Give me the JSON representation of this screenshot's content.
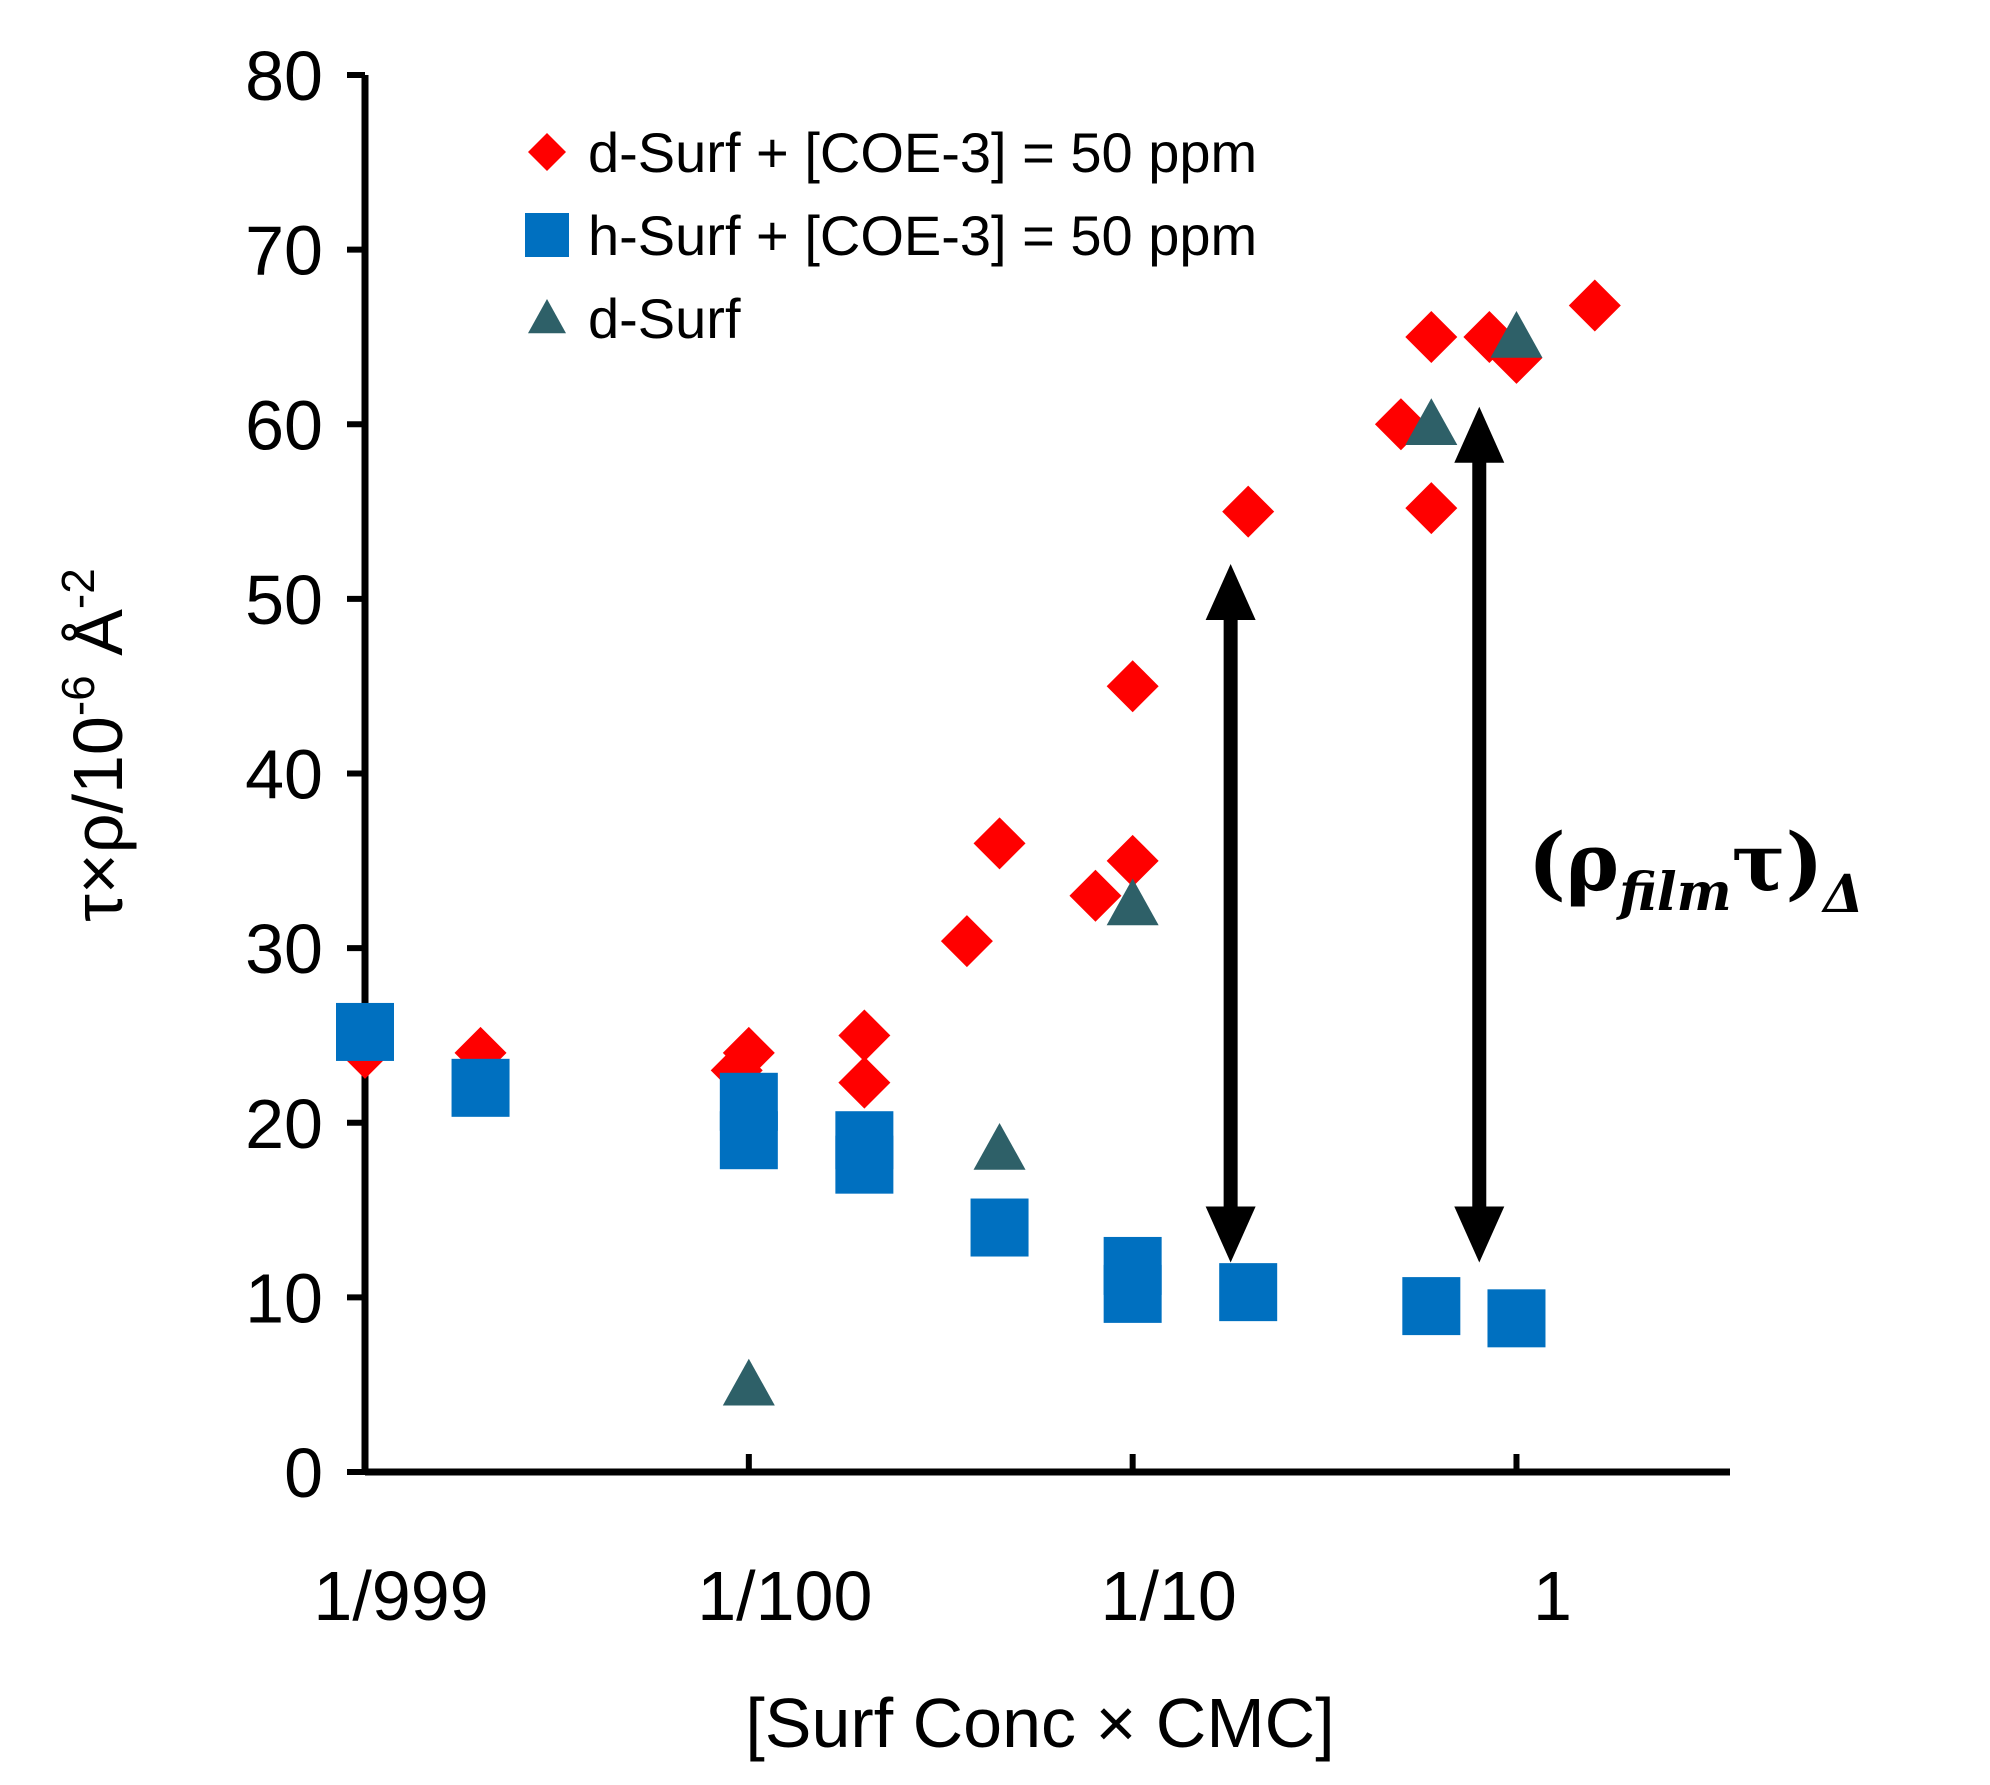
{
  "chart_data": {
    "type": "scatter",
    "title": "",
    "xlabel": "[Surf Conc × CMC]",
    "ylabel": "τ×ρ/10⁻⁶ Å⁻²",
    "ylabel_parts": {
      "main": "τ×ρ/10",
      "exp1": "-6",
      "unit": " Å",
      "exp2": "-2"
    },
    "x_scale": "log10",
    "xlim": [
      0.001,
      3.6
    ],
    "ylim": [
      0,
      80
    ],
    "yticks": [
      0,
      10,
      20,
      30,
      40,
      50,
      60,
      70,
      80
    ],
    "xtick_values": [
      0.01,
      0.1,
      1
    ],
    "xtick_labels": [
      {
        "label": "1/999",
        "x": 0.001
      },
      {
        "label": "1/100",
        "x": 0.01
      },
      {
        "label": "1/10",
        "x": 0.1
      },
      {
        "label": "1",
        "x": 1
      }
    ],
    "legend_position": "top-left",
    "colors": {
      "red": "#ff0000",
      "blue": "#0070c0",
      "teal": "#2e6068",
      "axis": "#000000"
    },
    "series": [
      {
        "name": "d-Surf + [COE-3] = 50 ppm",
        "marker": "diamond",
        "color": "#ff0000",
        "points": [
          [
            0.001,
            24
          ],
          [
            0.002,
            24
          ],
          [
            0.0093,
            23
          ],
          [
            0.01,
            24
          ],
          [
            0.02,
            25
          ],
          [
            0.02,
            22.3
          ],
          [
            0.037,
            30.4
          ],
          [
            0.045,
            36
          ],
          [
            0.08,
            33
          ],
          [
            0.1,
            45
          ],
          [
            0.1,
            35
          ],
          [
            0.2,
            55
          ],
          [
            0.5,
            60
          ],
          [
            0.6,
            65
          ],
          [
            0.6,
            55.2
          ],
          [
            0.85,
            65
          ],
          [
            1.0,
            63.8
          ],
          [
            1.6,
            66.8
          ]
        ]
      },
      {
        "name": "h-Surf + [COE-3] = 50 ppm",
        "marker": "square",
        "color": "#0070c0",
        "points": [
          [
            0.001,
            25.2
          ],
          [
            0.002,
            22
          ],
          [
            0.01,
            21.2
          ],
          [
            0.01,
            19
          ],
          [
            0.02,
            19
          ],
          [
            0.02,
            17.6
          ],
          [
            0.045,
            14
          ],
          [
            0.1,
            11.8
          ],
          [
            0.1,
            10.2
          ],
          [
            0.2,
            10.3
          ],
          [
            0.6,
            9.5
          ],
          [
            1.0,
            8.8
          ]
        ]
      },
      {
        "name": "d-Surf",
        "marker": "triangle",
        "color": "#2e6068",
        "points": [
          [
            0.01,
            5
          ],
          [
            0.045,
            18.5
          ],
          [
            0.1,
            32.5
          ],
          [
            0.6,
            60
          ],
          [
            1.0,
            65
          ]
        ]
      }
    ],
    "annotations": [
      {
        "type": "double-arrow",
        "x": 0.18,
        "y_from": 12,
        "y_to": 52
      },
      {
        "type": "double-arrow",
        "x": 0.8,
        "y_from": 12,
        "y_to": 61
      },
      {
        "type": "text",
        "base": "(ρ",
        "sub": "film",
        "mid": "τ)",
        "sub2": "Δ"
      }
    ]
  }
}
